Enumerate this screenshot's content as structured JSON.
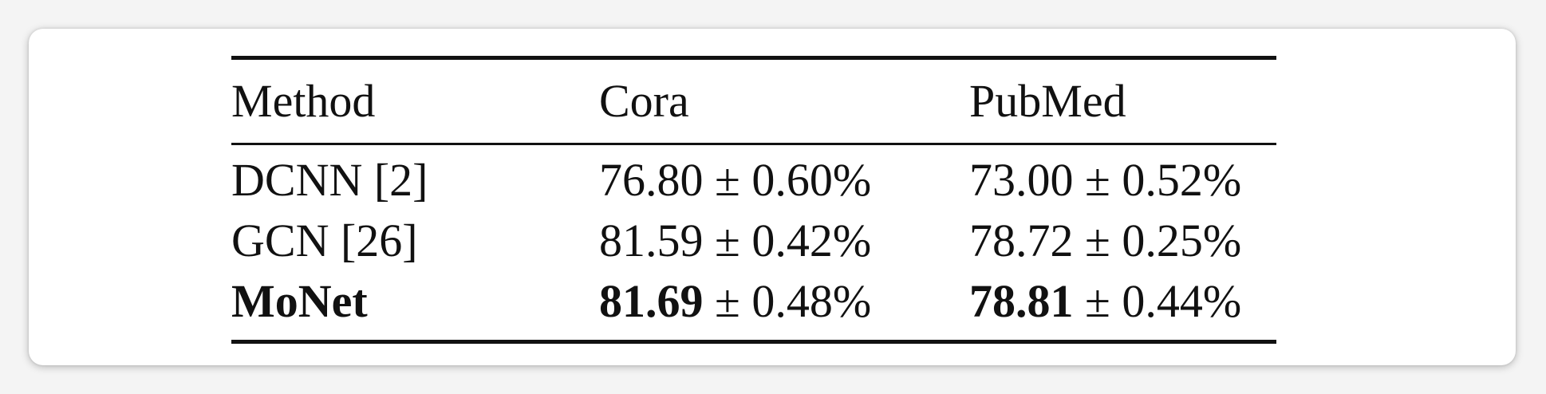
{
  "table": {
    "columns": [
      "Method",
      "Cora",
      "PubMed"
    ],
    "rows": [
      {
        "method": "DCNN [2]",
        "cora": {
          "mean": "76.80",
          "std": "0.60%"
        },
        "pubmed": {
          "mean": "73.00",
          "std": "0.52%"
        },
        "bold": false
      },
      {
        "method": "GCN [26]",
        "cora": {
          "mean": "81.59",
          "std": "0.42%"
        },
        "pubmed": {
          "mean": "78.72",
          "std": "0.25%"
        },
        "bold": false
      },
      {
        "method": "MoNet",
        "cora": {
          "mean": "81.69",
          "std": "0.48%"
        },
        "pubmed": {
          "mean": "78.81",
          "std": "0.44%"
        },
        "bold": true
      }
    ],
    "pm_symbol": "±"
  }
}
